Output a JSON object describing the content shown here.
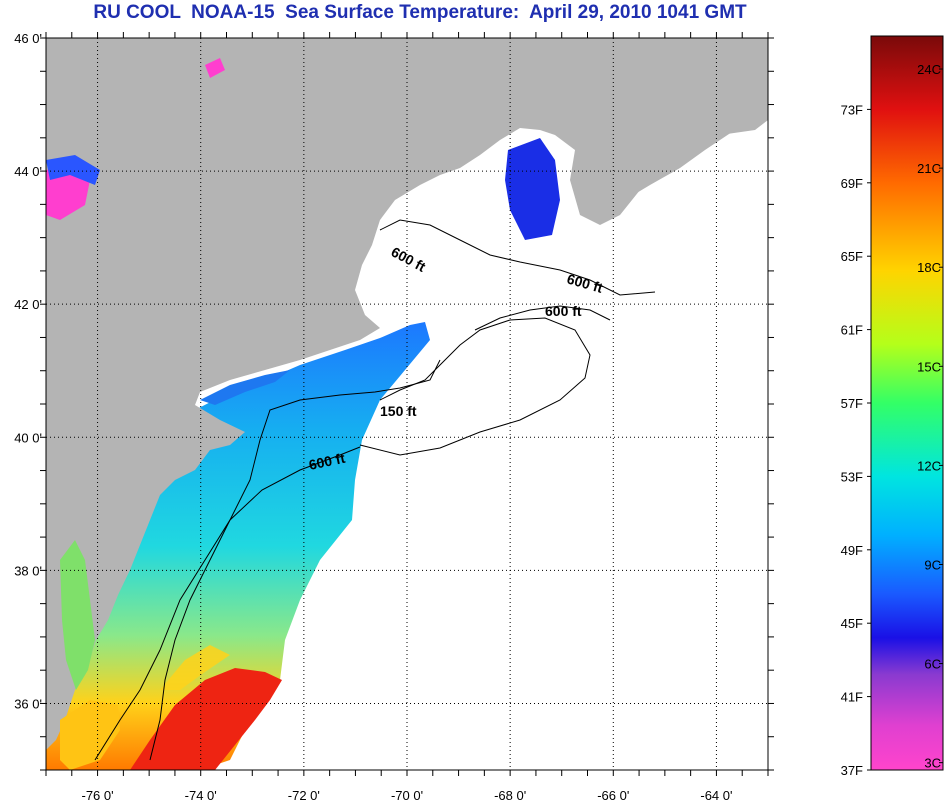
{
  "title": "RU COOL  NOAA-15  Sea Surface Temperature:  April 29, 2010 1041 GMT",
  "map": {
    "lon_range": [
      -77,
      -63
    ],
    "lat_range": [
      35,
      46
    ],
    "lat_ticks": [
      {
        "value": 46,
        "label": "46 0'"
      },
      {
        "value": 44,
        "label": "44 0'"
      },
      {
        "value": 42,
        "label": "42 0'"
      },
      {
        "value": 40,
        "label": "40 0'"
      },
      {
        "value": 38,
        "label": "38 0'"
      },
      {
        "value": 36,
        "label": "36 0'"
      }
    ],
    "lon_ticks": [
      {
        "value": -76,
        "label": "-76 0'"
      },
      {
        "value": -74,
        "label": "-74 0'"
      },
      {
        "value": -72,
        "label": "-72 0'"
      },
      {
        "value": -70,
        "label": "-70 0'"
      },
      {
        "value": -68,
        "label": "-68 0'"
      },
      {
        "value": -66,
        "label": "-66 0'"
      },
      {
        "value": -64,
        "label": "-64 0'"
      }
    ],
    "contour_labels": [
      {
        "text": "600 ft"
      },
      {
        "text": "600 ft"
      },
      {
        "text": "600 ft"
      },
      {
        "text": "150 ft"
      },
      {
        "text": "600 ft"
      }
    ],
    "colors": {
      "land": "#b4b4b4",
      "cloud": "#ffffff",
      "frame": "#000000"
    }
  },
  "colorbar": {
    "min_f": 37,
    "max_f": 77,
    "f_ticks": [
      {
        "value": 73,
        "label": "73F"
      },
      {
        "value": 69,
        "label": "69F"
      },
      {
        "value": 65,
        "label": "65F"
      },
      {
        "value": 61,
        "label": "61F"
      },
      {
        "value": 57,
        "label": "57F"
      },
      {
        "value": 53,
        "label": "53F"
      },
      {
        "value": 49,
        "label": "49F"
      },
      {
        "value": 45,
        "label": "45F"
      },
      {
        "value": 41,
        "label": "41F"
      },
      {
        "value": 37,
        "label": "37F"
      }
    ],
    "c_ticks": [
      {
        "value": 24,
        "label": "24C"
      },
      {
        "value": 21,
        "label": "21C"
      },
      {
        "value": 18,
        "label": "18C"
      },
      {
        "value": 15,
        "label": "15C"
      },
      {
        "value": 12,
        "label": "12C"
      },
      {
        "value": 9,
        "label": "9C"
      },
      {
        "value": 6,
        "label": "6C"
      },
      {
        "value": 3,
        "label": "3C"
      }
    ],
    "gradient_stops": [
      {
        "offset": 0,
        "color": "#7a0a0a"
      },
      {
        "offset": 0.1,
        "color": "#e01010"
      },
      {
        "offset": 0.2,
        "color": "#ff6a00"
      },
      {
        "offset": 0.32,
        "color": "#ffd400"
      },
      {
        "offset": 0.42,
        "color": "#b4ff1a"
      },
      {
        "offset": 0.5,
        "color": "#33ff66"
      },
      {
        "offset": 0.6,
        "color": "#00e5e0"
      },
      {
        "offset": 0.68,
        "color": "#00b0ff"
      },
      {
        "offset": 0.76,
        "color": "#1a5aff"
      },
      {
        "offset": 0.82,
        "color": "#1a10e6"
      },
      {
        "offset": 0.87,
        "color": "#8a3ad0"
      },
      {
        "offset": 0.94,
        "color": "#e040d0"
      },
      {
        "offset": 1,
        "color": "#ff44cc"
      }
    ]
  }
}
